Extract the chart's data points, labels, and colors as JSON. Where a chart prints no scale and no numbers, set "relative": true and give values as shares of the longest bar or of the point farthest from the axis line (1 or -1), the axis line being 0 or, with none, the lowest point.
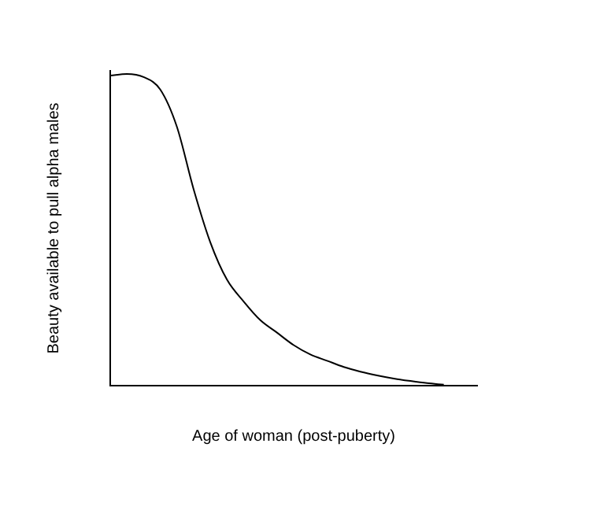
{
  "chart_data": {
    "type": "line",
    "relative": true,
    "xlabel": "Age of woman (post-puberty)",
    "ylabel": "Beauty available to pull alpha males",
    "categories": [
      null,
      null,
      null,
      null,
      null,
      null,
      null,
      null,
      null,
      null,
      null,
      null,
      null,
      null,
      null,
      null,
      null,
      null,
      null,
      null,
      null,
      null,
      null
    ],
    "series": [
      {
        "color": "#000000",
        "values": [
          0.995,
          1.0,
          0.99,
          0.95,
          0.83,
          0.63,
          0.46,
          0.34,
          0.27,
          0.21,
          0.17,
          0.13,
          0.1,
          0.08,
          0.06,
          0.045,
          0.033,
          0.023,
          0.015,
          0.008,
          0.003,
          null,
          null
        ]
      }
    ],
    "marker": "none",
    "grid": false,
    "legend": false,
    "tick_labels": false
  }
}
